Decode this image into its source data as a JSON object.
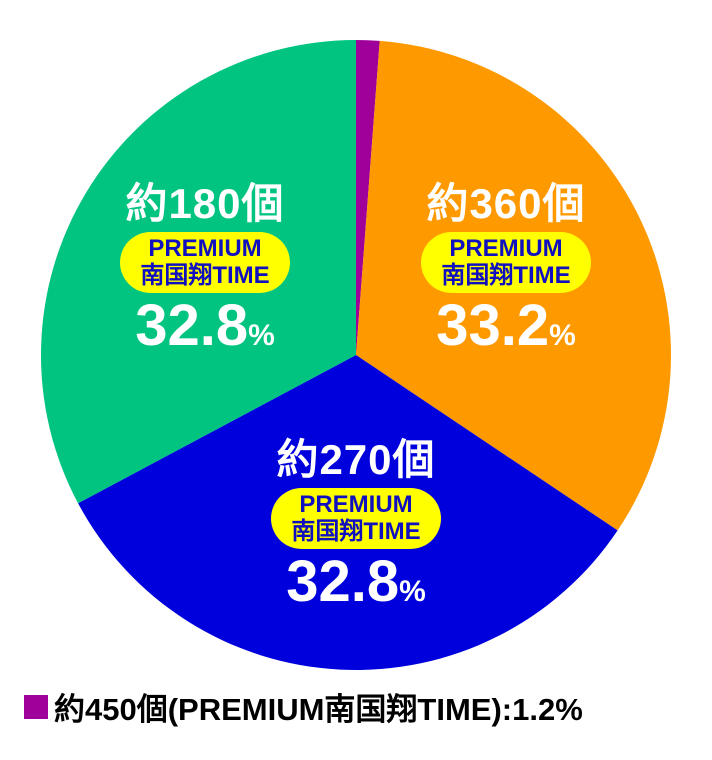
{
  "chart_data": {
    "type": "pie",
    "slices": [
      {
        "label": "約450個",
        "sublabel": [
          "PREMIUM",
          "南国翔TIME"
        ],
        "value": 1.2,
        "value_text": "1.2",
        "color": "#a0009a"
      },
      {
        "label": "約360個",
        "sublabel": [
          "PREMIUM",
          "南国翔TIME"
        ],
        "value": 33.2,
        "value_text": "33.2",
        "color": "#ff9900"
      },
      {
        "label": "約270個",
        "sublabel": [
          "PREMIUM",
          "南国翔TIME"
        ],
        "value": 32.8,
        "value_text": "32.8",
        "color": "#0000dd"
      },
      {
        "label": "約180個",
        "sublabel": [
          "PREMIUM",
          "南国翔TIME"
        ],
        "value": 32.8,
        "value_text": "32.8",
        "color": "#00c47f"
      }
    ],
    "unit": "%",
    "start": "top",
    "direction": "clockwise",
    "legend": {
      "position": "bottom-left",
      "text": "約450個(PREMIUM南国翔TIME):1.2%",
      "color": "#a0009a"
    }
  }
}
